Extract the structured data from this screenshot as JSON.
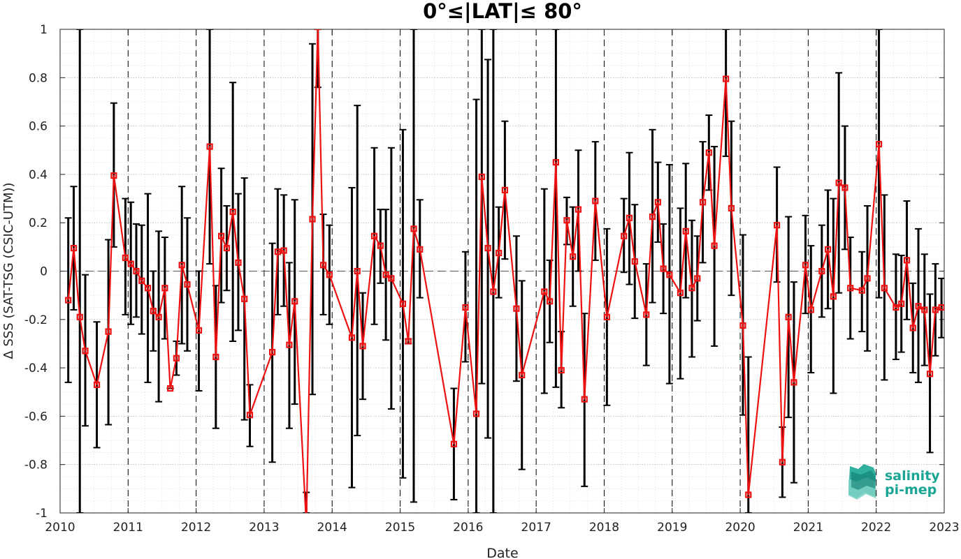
{
  "chart_data": {
    "type": "line",
    "title": "0°≤|LAT|≤ 80°",
    "xlabel": "Date",
    "ylabel": "Δ SSS (SAT-TSG (CSIC-UTM))",
    "xlim": [
      2010,
      2023
    ],
    "ylim": [
      -1,
      1
    ],
    "x_ticks": [
      "2010",
      "2011",
      "2012",
      "2013",
      "2014",
      "2015",
      "2016",
      "2017",
      "2018",
      "2019",
      "2020",
      "2021",
      "2022",
      "2023"
    ],
    "y_ticks": [
      "-1",
      "-0.8",
      "-0.6",
      "-0.4",
      "-0.2",
      "0",
      "0.2",
      "0.4",
      "0.6",
      "0.8",
      "1"
    ],
    "grid": true,
    "reference_line": 0,
    "year_boundaries": [
      2011,
      2012,
      2013,
      2014,
      2015,
      2016,
      2017,
      2018,
      2019,
      2020,
      2021,
      2022
    ],
    "series": [
      {
        "color": "#ee1111",
        "errorbar_color": "#000000",
        "points": [
          {
            "x": 2010.12,
            "y": -0.12,
            "lo": -0.46,
            "hi": 0.22
          },
          {
            "x": 2010.2,
            "y": 0.095,
            "lo": -0.16,
            "hi": 0.35
          },
          {
            "x": 2010.29,
            "y": -0.19,
            "lo": -1.0,
            "hi": 1.0
          },
          {
            "x": 2010.37,
            "y": -0.33,
            "lo": -0.64,
            "hi": -0.015
          },
          {
            "x": 2010.54,
            "y": -0.47,
            "lo": -0.73,
            "hi": -0.21
          },
          {
            "x": 2010.71,
            "y": -0.25,
            "lo": -0.635,
            "hi": 0.13
          },
          {
            "x": 2010.79,
            "y": 0.395,
            "lo": 0.1,
            "hi": 0.695
          },
          {
            "x": 2010.96,
            "y": 0.055,
            "lo": -0.18,
            "hi": 0.3
          },
          {
            "x": 2011.04,
            "y": 0.03,
            "lo": -0.22,
            "hi": 0.285
          },
          {
            "x": 2011.12,
            "y": 0.0,
            "lo": -0.19,
            "hi": 0.195
          },
          {
            "x": 2011.2,
            "y": -0.04,
            "lo": -0.26,
            "hi": 0.19
          },
          {
            "x": 2011.29,
            "y": -0.07,
            "lo": -0.46,
            "hi": 0.32
          },
          {
            "x": 2011.37,
            "y": -0.165,
            "lo": -0.33,
            "hi": 0.0
          },
          {
            "x": 2011.45,
            "y": -0.19,
            "lo": -0.54,
            "hi": 0.165
          },
          {
            "x": 2011.54,
            "y": -0.07,
            "lo": -0.28,
            "hi": 0.14
          },
          {
            "x": 2011.62,
            "y": -0.485,
            "lo": -0.485,
            "hi": -0.485
          },
          {
            "x": 2011.71,
            "y": -0.36,
            "lo": -0.43,
            "hi": -0.29
          },
          {
            "x": 2011.79,
            "y": 0.025,
            "lo": -0.3,
            "hi": 0.35
          },
          {
            "x": 2011.87,
            "y": -0.055,
            "lo": -0.33,
            "hi": 0.22
          },
          {
            "x": 2012.04,
            "y": -0.245,
            "lo": -0.495,
            "hi": 0.0
          },
          {
            "x": 2012.2,
            "y": 0.515,
            "lo": 0.03,
            "hi": 1.0
          },
          {
            "x": 2012.29,
            "y": -0.355,
            "lo": -0.65,
            "hi": -0.06
          },
          {
            "x": 2012.37,
            "y": 0.145,
            "lo": -0.13,
            "hi": 0.425
          },
          {
            "x": 2012.45,
            "y": 0.095,
            "lo": -0.08,
            "hi": 0.27
          },
          {
            "x": 2012.54,
            "y": 0.245,
            "lo": -0.29,
            "hi": 0.78
          },
          {
            "x": 2012.62,
            "y": 0.035,
            "lo": -0.245,
            "hi": 0.32
          },
          {
            "x": 2012.71,
            "y": -0.115,
            "lo": -0.615,
            "hi": 0.385
          },
          {
            "x": 2012.79,
            "y": -0.595,
            "lo": -0.725,
            "hi": -0.47
          },
          {
            "x": 2013.12,
            "y": -0.335,
            "lo": -0.79,
            "hi": 0.115
          },
          {
            "x": 2013.2,
            "y": 0.08,
            "lo": -0.18,
            "hi": 0.34
          },
          {
            "x": 2013.29,
            "y": 0.085,
            "lo": -0.145,
            "hi": 0.315
          },
          {
            "x": 2013.37,
            "y": -0.305,
            "lo": -0.65,
            "hi": 0.035
          },
          {
            "x": 2013.45,
            "y": -0.125,
            "lo": -0.55,
            "hi": 0.295
          },
          {
            "x": 2013.62,
            "y": -1.05,
            "lo": -1.0,
            "hi": -0.915
          },
          {
            "x": 2013.71,
            "y": 0.215,
            "lo": -0.51,
            "hi": 0.94
          },
          {
            "x": 2013.79,
            "y": 1.01,
            "lo": 0.76,
            "hi": 1.0
          },
          {
            "x": 2013.87,
            "y": 0.025,
            "lo": -0.18,
            "hi": 0.235
          },
          {
            "x": 2013.96,
            "y": -0.015,
            "lo": -0.22,
            "hi": 0.19
          },
          {
            "x": 2014.29,
            "y": -0.275,
            "lo": -0.895,
            "hi": 0.345
          },
          {
            "x": 2014.37,
            "y": 0.0,
            "lo": -0.68,
            "hi": 0.685
          },
          {
            "x": 2014.45,
            "y": -0.31,
            "lo": -0.53,
            "hi": -0.09
          },
          {
            "x": 2014.62,
            "y": 0.145,
            "lo": -0.22,
            "hi": 0.51
          },
          {
            "x": 2014.71,
            "y": 0.105,
            "lo": -0.05,
            "hi": 0.255
          },
          {
            "x": 2014.79,
            "y": -0.015,
            "lo": -0.285,
            "hi": 0.255
          },
          {
            "x": 2014.87,
            "y": -0.03,
            "lo": -0.57,
            "hi": 0.51
          },
          {
            "x": 2015.04,
            "y": -0.135,
            "lo": -0.855,
            "hi": 0.585
          },
          {
            "x": 2015.12,
            "y": -0.29,
            "lo": -0.3,
            "hi": -0.28
          },
          {
            "x": 2015.2,
            "y": 0.175,
            "lo": -0.955,
            "hi": 1.0
          },
          {
            "x": 2015.29,
            "y": 0.09,
            "lo": -0.11,
            "hi": 0.295
          },
          {
            "x": 2015.79,
            "y": -0.715,
            "lo": -0.945,
            "hi": -0.485
          },
          {
            "x": 2015.96,
            "y": -0.15,
            "lo": -0.375,
            "hi": 0.08
          },
          {
            "x": 2016.12,
            "y": -0.59,
            "lo": -1.0,
            "hi": 0.71
          },
          {
            "x": 2016.2,
            "y": 0.39,
            "lo": -0.465,
            "hi": 1.0
          },
          {
            "x": 2016.29,
            "y": 0.095,
            "lo": -0.69,
            "hi": 0.875
          },
          {
            "x": 2016.37,
            "y": -0.085,
            "lo": -1.0,
            "hi": 1.0
          },
          {
            "x": 2016.45,
            "y": 0.075,
            "lo": -0.11,
            "hi": 0.265
          },
          {
            "x": 2016.54,
            "y": 0.335,
            "lo": 0.05,
            "hi": 0.62
          },
          {
            "x": 2016.71,
            "y": -0.155,
            "lo": -0.455,
            "hi": 0.145
          },
          {
            "x": 2016.79,
            "y": -0.43,
            "lo": -0.82,
            "hi": -0.04
          },
          {
            "x": 2017.12,
            "y": -0.085,
            "lo": -0.505,
            "hi": 0.34
          },
          {
            "x": 2017.2,
            "y": -0.125,
            "lo": -0.295,
            "hi": 0.045
          },
          {
            "x": 2017.29,
            "y": 0.45,
            "lo": -0.48,
            "hi": 1.0
          },
          {
            "x": 2017.37,
            "y": -0.41,
            "lo": -0.565,
            "hi": -0.25
          },
          {
            "x": 2017.45,
            "y": 0.21,
            "lo": 0.11,
            "hi": 0.305
          },
          {
            "x": 2017.54,
            "y": 0.06,
            "lo": -0.145,
            "hi": 0.265
          },
          {
            "x": 2017.62,
            "y": 0.255,
            "lo": 0.0,
            "hi": 0.5
          },
          {
            "x": 2017.71,
            "y": -0.53,
            "lo": -0.89,
            "hi": -0.175
          },
          {
            "x": 2017.87,
            "y": 0.29,
            "lo": 0.045,
            "hi": 0.535
          },
          {
            "x": 2018.04,
            "y": -0.19,
            "lo": -0.555,
            "hi": 0.175
          },
          {
            "x": 2018.29,
            "y": 0.145,
            "lo": -0.005,
            "hi": 0.3
          },
          {
            "x": 2018.37,
            "y": 0.22,
            "lo": -0.055,
            "hi": 0.49
          },
          {
            "x": 2018.45,
            "y": 0.04,
            "lo": -0.195,
            "hi": 0.275
          },
          {
            "x": 2018.62,
            "y": -0.18,
            "lo": -0.39,
            "hi": 0.03
          },
          {
            "x": 2018.71,
            "y": 0.225,
            "lo": -0.13,
            "hi": 0.585
          },
          {
            "x": 2018.79,
            "y": 0.285,
            "lo": 0.12,
            "hi": 0.45
          },
          {
            "x": 2018.87,
            "y": 0.01,
            "lo": -0.175,
            "hi": 0.195
          },
          {
            "x": 2018.96,
            "y": -0.015,
            "lo": -0.465,
            "hi": 0.44
          },
          {
            "x": 2019.12,
            "y": -0.09,
            "lo": -0.445,
            "hi": 0.26
          },
          {
            "x": 2019.2,
            "y": 0.165,
            "lo": -0.11,
            "hi": 0.445
          },
          {
            "x": 2019.29,
            "y": -0.07,
            "lo": -0.355,
            "hi": 0.21
          },
          {
            "x": 2019.37,
            "y": -0.03,
            "lo": -0.205,
            "hi": 0.145
          },
          {
            "x": 2019.45,
            "y": 0.285,
            "lo": 0.035,
            "hi": 0.535
          },
          {
            "x": 2019.54,
            "y": 0.49,
            "lo": 0.335,
            "hi": 0.645
          },
          {
            "x": 2019.62,
            "y": 0.105,
            "lo": -0.31,
            "hi": 0.515
          },
          {
            "x": 2019.79,
            "y": 0.795,
            "lo": 0.475,
            "hi": 1.0
          },
          {
            "x": 2019.87,
            "y": 0.26,
            "lo": -0.1,
            "hi": 0.62
          },
          {
            "x": 2020.04,
            "y": -0.225,
            "lo": -0.595,
            "hi": 0.15
          },
          {
            "x": 2020.12,
            "y": -0.925,
            "lo": -1.0,
            "hi": -0.355
          },
          {
            "x": 2020.54,
            "y": 0.19,
            "lo": -0.045,
            "hi": 0.43
          },
          {
            "x": 2020.62,
            "y": -0.79,
            "lo": -0.935,
            "hi": -0.645
          },
          {
            "x": 2020.71,
            "y": -0.19,
            "lo": -0.605,
            "hi": 0.225
          },
          {
            "x": 2020.79,
            "y": -0.46,
            "lo": -0.875,
            "hi": -0.045
          },
          {
            "x": 2020.96,
            "y": 0.025,
            "lo": -0.175,
            "hi": 0.23
          },
          {
            "x": 2021.04,
            "y": -0.16,
            "lo": -0.42,
            "hi": 0.105
          },
          {
            "x": 2021.2,
            "y": 0.0,
            "lo": -0.19,
            "hi": 0.19
          },
          {
            "x": 2021.29,
            "y": 0.09,
            "lo": -0.155,
            "hi": 0.335
          },
          {
            "x": 2021.37,
            "y": -0.105,
            "lo": -0.505,
            "hi": 0.3
          },
          {
            "x": 2021.45,
            "y": 0.365,
            "lo": -0.09,
            "hi": 0.82
          },
          {
            "x": 2021.54,
            "y": 0.345,
            "lo": 0.09,
            "hi": 0.6
          },
          {
            "x": 2021.62,
            "y": -0.07,
            "lo": -0.28,
            "hi": 0.14
          },
          {
            "x": 2021.79,
            "y": -0.08,
            "lo": -0.25,
            "hi": 0.08
          },
          {
            "x": 2021.87,
            "y": -0.03,
            "lo": -0.33,
            "hi": 0.27
          },
          {
            "x": 2022.04,
            "y": 0.525,
            "lo": -0.11,
            "hi": 1.0
          },
          {
            "x": 2022.12,
            "y": -0.07,
            "lo": -0.45,
            "hi": 0.315
          },
          {
            "x": 2022.29,
            "y": -0.15,
            "lo": -0.365,
            "hi": 0.07
          },
          {
            "x": 2022.37,
            "y": -0.135,
            "lo": -0.335,
            "hi": 0.065
          },
          {
            "x": 2022.45,
            "y": 0.045,
            "lo": -0.2,
            "hi": 0.29
          },
          {
            "x": 2022.54,
            "y": -0.235,
            "lo": -0.42,
            "hi": -0.05
          },
          {
            "x": 2022.62,
            "y": -0.145,
            "lo": -0.46,
            "hi": 0.175
          },
          {
            "x": 2022.71,
            "y": -0.16,
            "lo": -0.39,
            "hi": 0.07
          },
          {
            "x": 2022.79,
            "y": -0.425,
            "lo": -0.75,
            "hi": -0.095
          },
          {
            "x": 2022.87,
            "y": -0.16,
            "lo": -0.35,
            "hi": 0.03
          },
          {
            "x": 2022.96,
            "y": -0.15,
            "lo": -0.275,
            "hi": -0.03
          }
        ]
      }
    ]
  },
  "logo": {
    "line1": "salinity",
    "line2": "pi-mep",
    "color": "#1aa594"
  }
}
